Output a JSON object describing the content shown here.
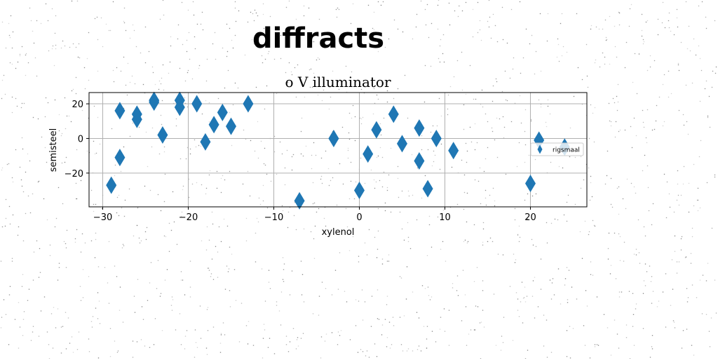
{
  "figure": {
    "suptitle": "diffracts"
  },
  "chart_data": {
    "type": "scatter",
    "title": "o V illuminator",
    "xlabel": "xylenol",
    "ylabel": "semisteel",
    "xlim": [
      -31.6,
      26.6
    ],
    "ylim": [
      -39.5,
      26.5
    ],
    "xticks": [
      -30,
      -20,
      -10,
      0,
      10,
      20
    ],
    "yticks": [
      -20,
      0,
      20
    ],
    "grid": true,
    "legend_position": "right",
    "series": [
      {
        "name": "rigsmaal",
        "color": "#1f77b4",
        "marker": "thin-diamond",
        "x": [
          -29,
          -28,
          -28,
          -26,
          -26,
          -24,
          -24,
          -23,
          -21,
          -21,
          -19,
          -18,
          -17,
          -16,
          -15,
          -13,
          -7,
          -3,
          0,
          1,
          2,
          4,
          5,
          7,
          7,
          8,
          9,
          11,
          20,
          21,
          24
        ],
        "y": [
          -27,
          16,
          -11,
          14,
          11,
          22,
          21,
          2,
          22,
          18,
          20,
          -2,
          8,
          15,
          7,
          20,
          -36,
          0,
          -30,
          -9,
          5,
          14,
          -3,
          6,
          -13,
          -29,
          0,
          -7,
          -26,
          -1,
          -5
        ]
      }
    ]
  }
}
